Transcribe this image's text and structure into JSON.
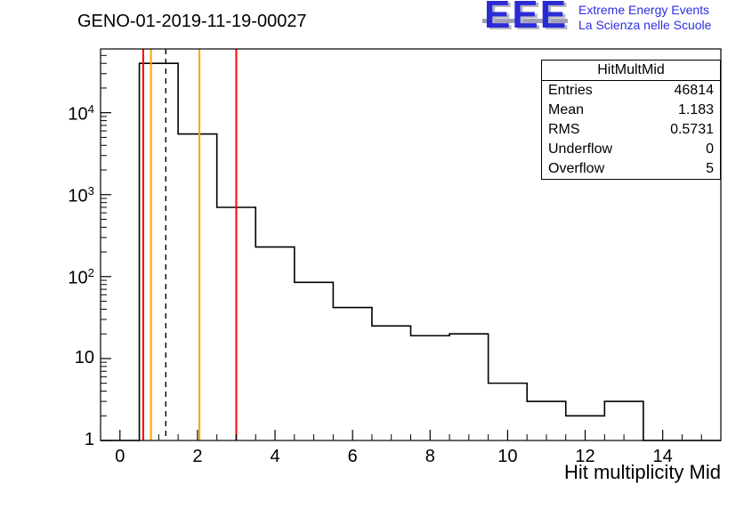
{
  "title": "GENO-01-2019-11-19-00027",
  "logo": {
    "acronym": "EEE",
    "tagline_line1": "Extreme Energy Events",
    "tagline_line2": "La Scienza nelle Scuole",
    "blue": "#2b2bd6",
    "gray": "#a2a2b4"
  },
  "stats_box": {
    "title": "HitMultMid",
    "rows": [
      {
        "label": "Entries",
        "value": "46814"
      },
      {
        "label": "Mean",
        "value": "1.183"
      },
      {
        "label": "RMS",
        "value": "0.5731"
      },
      {
        "label": "Underflow",
        "value": "0"
      },
      {
        "label": "Overflow",
        "value": "5"
      }
    ]
  },
  "chart_data": {
    "type": "bar",
    "style": "step-histogram-outline",
    "title": "GENO-01-2019-11-19-00027",
    "xlabel": "Hit multiplicity Mid",
    "ylabel": "",
    "y_scale": "log",
    "x_range": [
      -0.5,
      15.5
    ],
    "y_range": [
      1,
      60000
    ],
    "grid": false,
    "x_major_ticks": [
      0,
      2,
      4,
      6,
      8,
      10,
      12,
      14
    ],
    "x_minor_tick_step": 0.5,
    "y_major_ticks": [
      {
        "value": 1,
        "label": "1"
      },
      {
        "value": 10,
        "label": "10"
      },
      {
        "value": 100,
        "label": "10^{2}"
      },
      {
        "value": 1000,
        "label": "10^{3}"
      },
      {
        "value": 10000,
        "label": "10^{4}"
      }
    ],
    "bin_edges": [
      0.5,
      1.5,
      2.5,
      3.5,
      4.5,
      5.5,
      6.5,
      7.5,
      8.5,
      9.5,
      10.5,
      11.5,
      12.5,
      13.5
    ],
    "counts": [
      40000,
      5500,
      700,
      230,
      85,
      42,
      25,
      19,
      20,
      5,
      3,
      2,
      3
    ],
    "line_color": "#000000",
    "markers": {
      "red_vertical_lines": [
        0.6,
        3.0
      ],
      "red_color": "#ff0000",
      "orange_vertical_lines": [
        0.8,
        2.05
      ],
      "orange_color": "#ffa500",
      "dashed_vertical_line": 1.183,
      "dashed_color": "#000000"
    }
  }
}
